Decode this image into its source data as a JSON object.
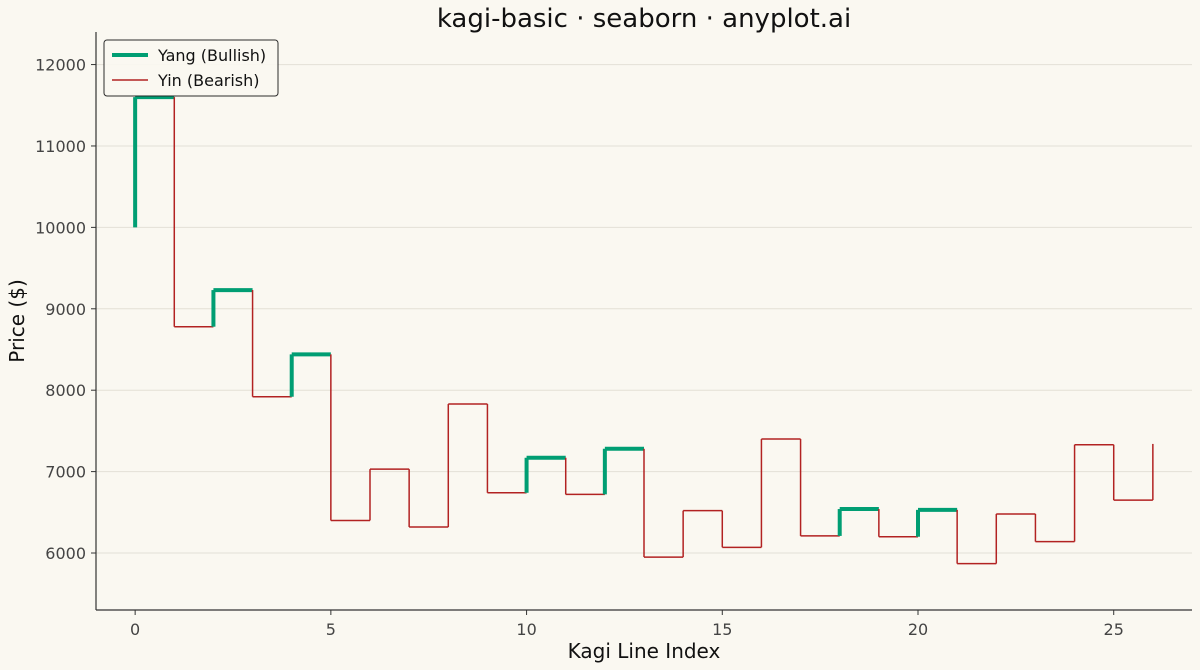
{
  "chart_data": {
    "type": "line",
    "title": "kagi-basic · seaborn · anyplot.ai",
    "xlabel": "Kagi Line Index",
    "ylabel": "Price ($)",
    "xlim": [
      -1,
      27
    ],
    "ylim": [
      5300,
      12400
    ],
    "xticks": [
      0,
      5,
      10,
      15,
      20,
      25
    ],
    "yticks": [
      6000,
      7000,
      8000,
      9000,
      10000,
      11000,
      12000
    ],
    "grid": "horizontal",
    "legend_position": "top-left",
    "colors": {
      "yang": "#009E73",
      "yin": "#B22222",
      "background": "#FAF8F1"
    },
    "series": [
      {
        "name": "Yang (Bullish)",
        "color": "#009E73"
      },
      {
        "name": "Yin (Bearish)",
        "color": "#B22222"
      }
    ],
    "kagi": {
      "start": 10000,
      "prices": [
        11600,
        8780,
        9230,
        7920,
        8440,
        6400,
        7030,
        6320,
        7830,
        6740,
        7170,
        6720,
        7280,
        5950,
        6520,
        6070,
        7400,
        6210,
        6540,
        6200,
        6530,
        5870,
        6480,
        6140,
        7330,
        6650,
        7340
      ],
      "segment_types": [
        "yang",
        "yin",
        "yang",
        "yin",
        "yang",
        "yin",
        "yin",
        "yin",
        "yin",
        "yin",
        "yang",
        "yin",
        "yang",
        "yin",
        "yin",
        "yin",
        "yin",
        "yin",
        "yang",
        "yin",
        "yang",
        "yin",
        "yin",
        "yin",
        "yin",
        "yin",
        "yin"
      ]
    }
  },
  "legend": {
    "yang_label": "Yang (Bullish)",
    "yin_label": "Yin (Bearish)"
  }
}
